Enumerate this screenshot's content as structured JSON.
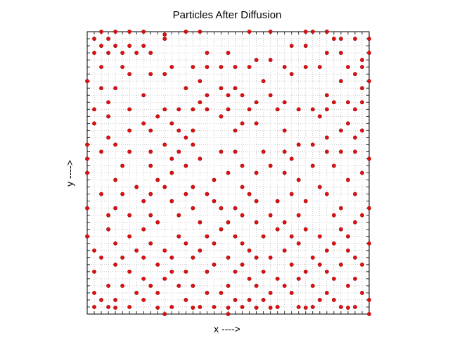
{
  "chart_data": {
    "type": "scatter",
    "title": "Particles After Diffusion",
    "xlabel": "x ---->",
    "ylabel": "y ---->",
    "xlim": [
      0,
      40
    ],
    "ylim": [
      0,
      40
    ],
    "grid": true,
    "marker_color": "#e01010",
    "marker_edge_color": "#990000",
    "points": [
      [
        2,
        40
      ],
      [
        4,
        40
      ],
      [
        6,
        40
      ],
      [
        8,
        40
      ],
      [
        14,
        40
      ],
      [
        16,
        40
      ],
      [
        23,
        40
      ],
      [
        26,
        40
      ],
      [
        31,
        40
      ],
      [
        32,
        40
      ],
      [
        34,
        40
      ],
      [
        3,
        39
      ],
      [
        11,
        39
      ],
      [
        35,
        39
      ],
      [
        36,
        39
      ],
      [
        38,
        39
      ],
      [
        40,
        39
      ],
      [
        2,
        38
      ],
      [
        4,
        38
      ],
      [
        6,
        38
      ],
      [
        8,
        38
      ],
      [
        29,
        38
      ],
      [
        31,
        38
      ],
      [
        1,
        37
      ],
      [
        3,
        37
      ],
      [
        5,
        37
      ],
      [
        7,
        37
      ],
      [
        9,
        37
      ],
      [
        17,
        37
      ],
      [
        20,
        37
      ],
      [
        34,
        37
      ],
      [
        36,
        37
      ],
      [
        24,
        36
      ],
      [
        26,
        36
      ],
      [
        39,
        36
      ],
      [
        5,
        35
      ],
      [
        2,
        35
      ],
      [
        12,
        35
      ],
      [
        15,
        35
      ],
      [
        17,
        35
      ],
      [
        19,
        35
      ],
      [
        21,
        35
      ],
      [
        23,
        35
      ],
      [
        28,
        35
      ],
      [
        31,
        35
      ],
      [
        33,
        35
      ],
      [
        37,
        35
      ],
      [
        39,
        35
      ],
      [
        6,
        34
      ],
      [
        9,
        34
      ],
      [
        11,
        34
      ],
      [
        29,
        34
      ],
      [
        38,
        34
      ],
      [
        0,
        33
      ],
      [
        16,
        33
      ],
      [
        25,
        33
      ],
      [
        36,
        33
      ],
      [
        40,
        33
      ],
      [
        2,
        32
      ],
      [
        4,
        32
      ],
      [
        14,
        32
      ],
      [
        19,
        32
      ],
      [
        21,
        32
      ],
      [
        39,
        32
      ],
      [
        8,
        31
      ],
      [
        17,
        31
      ],
      [
        20,
        31
      ],
      [
        22,
        31
      ],
      [
        26,
        31
      ],
      [
        34,
        31
      ],
      [
        3,
        30
      ],
      [
        16,
        30
      ],
      [
        24,
        30
      ],
      [
        28,
        30
      ],
      [
        35,
        30
      ],
      [
        37,
        30
      ],
      [
        39,
        30
      ],
      [
        1,
        29
      ],
      [
        6,
        29
      ],
      [
        11,
        29
      ],
      [
        13,
        29
      ],
      [
        15,
        29
      ],
      [
        17,
        29
      ],
      [
        20,
        29
      ],
      [
        23,
        29
      ],
      [
        27,
        29
      ],
      [
        30,
        29
      ],
      [
        32,
        29
      ],
      [
        34,
        29
      ],
      [
        38,
        29
      ],
      [
        3,
        28
      ],
      [
        10,
        28
      ],
      [
        19,
        28
      ],
      [
        33,
        28
      ],
      [
        1,
        27
      ],
      [
        8,
        27
      ],
      [
        12,
        27
      ],
      [
        22,
        27
      ],
      [
        24,
        27
      ],
      [
        37,
        27
      ],
      [
        6,
        26
      ],
      [
        9,
        26
      ],
      [
        13,
        26
      ],
      [
        15,
        26
      ],
      [
        21,
        26
      ],
      [
        28,
        26
      ],
      [
        36,
        26
      ],
      [
        39,
        26
      ],
      [
        3,
        25
      ],
      [
        14,
        25
      ],
      [
        34,
        25
      ],
      [
        38,
        25
      ],
      [
        0,
        24
      ],
      [
        4,
        24
      ],
      [
        11,
        24
      ],
      [
        15,
        24
      ],
      [
        30,
        24
      ],
      [
        32,
        24
      ],
      [
        2,
        23
      ],
      [
        6,
        23
      ],
      [
        9,
        23
      ],
      [
        13,
        23
      ],
      [
        19,
        23
      ],
      [
        21,
        23
      ],
      [
        25,
        23
      ],
      [
        28,
        23
      ],
      [
        34,
        23
      ],
      [
        36,
        23
      ],
      [
        38,
        23
      ],
      [
        0,
        22
      ],
      [
        12,
        22
      ],
      [
        16,
        22
      ],
      [
        29,
        22
      ],
      [
        40,
        22
      ],
      [
        5,
        21
      ],
      [
        9,
        21
      ],
      [
        14,
        21
      ],
      [
        22,
        21
      ],
      [
        26,
        21
      ],
      [
        32,
        21
      ],
      [
        35,
        21
      ],
      [
        0,
        20
      ],
      [
        12,
        20
      ],
      [
        20,
        20
      ],
      [
        24,
        20
      ],
      [
        28,
        20
      ],
      [
        39,
        20
      ],
      [
        4,
        19
      ],
      [
        10,
        19
      ],
      [
        18,
        19
      ],
      [
        30,
        19
      ],
      [
        37,
        19
      ],
      [
        7,
        18
      ],
      [
        11,
        18
      ],
      [
        15,
        18
      ],
      [
        22,
        18
      ],
      [
        33,
        18
      ],
      [
        2,
        17
      ],
      [
        5,
        17
      ],
      [
        9,
        17
      ],
      [
        14,
        17
      ],
      [
        17,
        17
      ],
      [
        23,
        17
      ],
      [
        29,
        17
      ],
      [
        34,
        17
      ],
      [
        38,
        17
      ],
      [
        8,
        16
      ],
      [
        12,
        16
      ],
      [
        18,
        16
      ],
      [
        24,
        16
      ],
      [
        27,
        16
      ],
      [
        31,
        16
      ],
      [
        0,
        15
      ],
      [
        4,
        15
      ],
      [
        15,
        15
      ],
      [
        19,
        15
      ],
      [
        21,
        15
      ],
      [
        36,
        15
      ],
      [
        40,
        15
      ],
      [
        3,
        14
      ],
      [
        6,
        14
      ],
      [
        9,
        14
      ],
      [
        13,
        14
      ],
      [
        22,
        14
      ],
      [
        26,
        14
      ],
      [
        30,
        14
      ],
      [
        35,
        14
      ],
      [
        39,
        14
      ],
      [
        10,
        13
      ],
      [
        16,
        13
      ],
      [
        20,
        13
      ],
      [
        24,
        13
      ],
      [
        28,
        13
      ],
      [
        38,
        13
      ],
      [
        0,
        11
      ],
      [
        6,
        11
      ],
      [
        13,
        11
      ],
      [
        17,
        11
      ],
      [
        21,
        11
      ],
      [
        25,
        11
      ],
      [
        29,
        11
      ],
      [
        33,
        11
      ],
      [
        37,
        11
      ],
      [
        3,
        12
      ],
      [
        8,
        12
      ],
      [
        19,
        12
      ],
      [
        27,
        12
      ],
      [
        31,
        12
      ],
      [
        36,
        12
      ],
      [
        4,
        10
      ],
      [
        9,
        10
      ],
      [
        14,
        10
      ],
      [
        18,
        10
      ],
      [
        22,
        10
      ],
      [
        30,
        10
      ],
      [
        35,
        10
      ],
      [
        40,
        10
      ],
      [
        1,
        9
      ],
      [
        7,
        9
      ],
      [
        11,
        9
      ],
      [
        16,
        9
      ],
      [
        23,
        9
      ],
      [
        28,
        9
      ],
      [
        34,
        9
      ],
      [
        37,
        9
      ],
      [
        2,
        8
      ],
      [
        5,
        8
      ],
      [
        8,
        8
      ],
      [
        12,
        8
      ],
      [
        15,
        8
      ],
      [
        20,
        8
      ],
      [
        24,
        8
      ],
      [
        26,
        8
      ],
      [
        32,
        8
      ],
      [
        38,
        8
      ],
      [
        4,
        7
      ],
      [
        10,
        7
      ],
      [
        18,
        7
      ],
      [
        22,
        7
      ],
      [
        29,
        7
      ],
      [
        33,
        7
      ],
      [
        36,
        7
      ],
      [
        39,
        7
      ],
      [
        1,
        6
      ],
      [
        6,
        6
      ],
      [
        12,
        6
      ],
      [
        14,
        6
      ],
      [
        17,
        6
      ],
      [
        21,
        6
      ],
      [
        25,
        6
      ],
      [
        31,
        6
      ],
      [
        34,
        6
      ],
      [
        8,
        5
      ],
      [
        11,
        5
      ],
      [
        23,
        5
      ],
      [
        27,
        5
      ],
      [
        30,
        5
      ],
      [
        35,
        5
      ],
      [
        38,
        5
      ],
      [
        3,
        4
      ],
      [
        5,
        4
      ],
      [
        9,
        4
      ],
      [
        13,
        4
      ],
      [
        15,
        4
      ],
      [
        20,
        4
      ],
      [
        24,
        4
      ],
      [
        28,
        4
      ],
      [
        32,
        4
      ],
      [
        37,
        4
      ],
      [
        1,
        3
      ],
      [
        7,
        3
      ],
      [
        10,
        3
      ],
      [
        17,
        3
      ],
      [
        19,
        3
      ],
      [
        26,
        3
      ],
      [
        29,
        3
      ],
      [
        34,
        3
      ],
      [
        39,
        3
      ],
      [
        2,
        2
      ],
      [
        4,
        2
      ],
      [
        8,
        2
      ],
      [
        14,
        2
      ],
      [
        21,
        2
      ],
      [
        23,
        2
      ],
      [
        25,
        2
      ],
      [
        33,
        2
      ],
      [
        35,
        2
      ],
      [
        40,
        2
      ],
      [
        1,
        1
      ],
      [
        3,
        1
      ],
      [
        6,
        1
      ],
      [
        12,
        1
      ],
      [
        16,
        1
      ],
      [
        18,
        1
      ],
      [
        22,
        1
      ],
      [
        27,
        1
      ],
      [
        30,
        1
      ],
      [
        32,
        1
      ],
      [
        36,
        1
      ],
      [
        38,
        1
      ],
      [
        4,
        0.9
      ],
      [
        10,
        0.9
      ],
      [
        15,
        0.9
      ],
      [
        20,
        0.9
      ],
      [
        24,
        0.9
      ],
      [
        26,
        0.9
      ],
      [
        31,
        0.9
      ],
      [
        37,
        0.9
      ],
      [
        11,
        0
      ],
      [
        20,
        0
      ],
      [
        40,
        0
      ],
      [
        11,
        39.6
      ],
      [
        34,
        40
      ],
      [
        1,
        39
      ],
      [
        40,
        37
      ]
    ]
  }
}
